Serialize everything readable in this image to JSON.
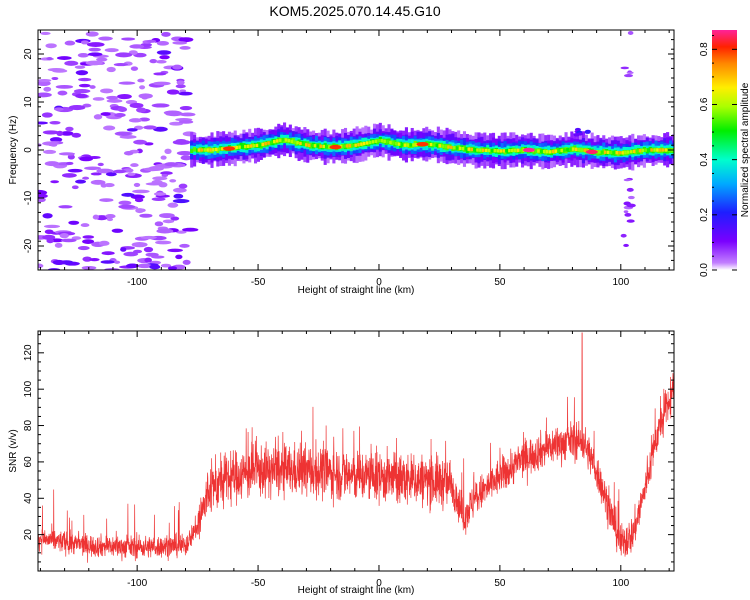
{
  "title": "KOM5.2025.070.14.45.G10",
  "chart_data": [
    {
      "type": "heatmap",
      "xlabel": "Height of straight line (km)",
      "ylabel": "Frequency (Hz)",
      "xlim": [
        -141,
        122
      ],
      "ylim": [
        -25,
        25
      ],
      "xticks": [
        -100,
        -50,
        0,
        50,
        100
      ],
      "yticks": [
        -20,
        -10,
        0,
        10,
        20
      ],
      "colorbar": {
        "label": "Normalized spectral amplitude",
        "range": [
          0,
          0.87
        ],
        "ticks": [
          0.0,
          0.2,
          0.4,
          0.6,
          0.8
        ],
        "tick_labels": [
          "0.0",
          "0.2",
          "0.4",
          "0.6",
          "0.8"
        ]
      },
      "ridge_center": [
        {
          "x": -78,
          "y": 0.0
        },
        {
          "x": -70,
          "y": 0.0
        },
        {
          "x": -60,
          "y": 0.5
        },
        {
          "x": -50,
          "y": 1.0
        },
        {
          "x": -40,
          "y": 2.2
        },
        {
          "x": -30,
          "y": 1.0
        },
        {
          "x": -20,
          "y": 0.6
        },
        {
          "x": -10,
          "y": 1.0
        },
        {
          "x": 0,
          "y": 2.0
        },
        {
          "x": 10,
          "y": 1.0
        },
        {
          "x": 20,
          "y": 1.2
        },
        {
          "x": 30,
          "y": 0.5
        },
        {
          "x": 40,
          "y": 0.0
        },
        {
          "x": 50,
          "y": -0.2
        },
        {
          "x": 60,
          "y": 0.0
        },
        {
          "x": 70,
          "y": -0.4
        },
        {
          "x": 80,
          "y": 0.2
        },
        {
          "x": 90,
          "y": -0.4
        },
        {
          "x": 100,
          "y": -0.6
        },
        {
          "x": 110,
          "y": 0.0
        },
        {
          "x": 122,
          "y": 0.0
        }
      ],
      "peak_amplitude_points": [
        {
          "x": -62,
          "y": 0.3,
          "v": 0.8
        },
        {
          "x": -18,
          "y": 0.6,
          "v": 0.8
        },
        {
          "x": 18,
          "y": 1.2,
          "v": 0.8
        },
        {
          "x": 62,
          "y": 0.0,
          "v": 0.87
        },
        {
          "x": 88,
          "y": -0.4,
          "v": 0.85
        }
      ]
    },
    {
      "type": "line",
      "xlabel": "Height of straight line (km)",
      "ylabel": "SNR (v/v)",
      "xlim": [
        -141,
        122
      ],
      "ylim": [
        0,
        132
      ],
      "xticks": [
        -100,
        -50,
        0,
        50,
        100
      ],
      "yticks": [
        20,
        40,
        60,
        80,
        100,
        120
      ],
      "color": "#ee3333",
      "trend": [
        {
          "x": -141,
          "y": 18
        },
        {
          "x": -120,
          "y": 14
        },
        {
          "x": -100,
          "y": 13
        },
        {
          "x": -80,
          "y": 14
        },
        {
          "x": -75,
          "y": 25
        },
        {
          "x": -70,
          "y": 45
        },
        {
          "x": -60,
          "y": 52
        },
        {
          "x": -50,
          "y": 55
        },
        {
          "x": -40,
          "y": 55
        },
        {
          "x": -30,
          "y": 55
        },
        {
          "x": -20,
          "y": 54
        },
        {
          "x": -10,
          "y": 52
        },
        {
          "x": 0,
          "y": 52
        },
        {
          "x": 10,
          "y": 50
        },
        {
          "x": 20,
          "y": 50
        },
        {
          "x": 30,
          "y": 48
        },
        {
          "x": 35,
          "y": 30
        },
        {
          "x": 40,
          "y": 40
        },
        {
          "x": 50,
          "y": 52
        },
        {
          "x": 60,
          "y": 62
        },
        {
          "x": 70,
          "y": 68
        },
        {
          "x": 80,
          "y": 72
        },
        {
          "x": 85,
          "y": 70
        },
        {
          "x": 90,
          "y": 55
        },
        {
          "x": 95,
          "y": 35
        },
        {
          "x": 100,
          "y": 15
        },
        {
          "x": 105,
          "y": 20
        },
        {
          "x": 110,
          "y": 45
        },
        {
          "x": 115,
          "y": 75
        },
        {
          "x": 122,
          "y": 100
        }
      ],
      "max_point": {
        "x": 84,
        "y": 131
      }
    }
  ]
}
